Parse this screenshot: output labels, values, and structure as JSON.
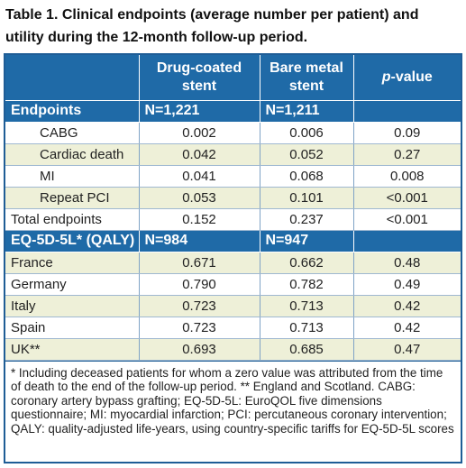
{
  "title_line1": "Table 1. Clinical endpoints (average number per patient) and",
  "title_line2": "utility during the 12-month follow-up period.",
  "header": {
    "col1": "",
    "col2_line1": "Drug-coated",
    "col2_line2": "stent",
    "col3_line1": "Bare metal",
    "col3_line2": "stent",
    "col4_italic": "p",
    "col4_rest": "-value"
  },
  "sections": [
    {
      "label": "Endpoints",
      "n_dcs": "N=1,221",
      "n_bms": "N=1,211",
      "rows": [
        {
          "label": "CABG",
          "dcs": "0.002",
          "bms": "0.006",
          "p": "0.09"
        },
        {
          "label": "Cardiac death",
          "dcs": "0.042",
          "bms": "0.052",
          "p": "0.27"
        },
        {
          "label": "MI",
          "dcs": "0.041",
          "bms": "0.068",
          "p": "0.008"
        },
        {
          "label": "Repeat PCI",
          "dcs": "0.053",
          "bms": "0.101",
          "p": "<0.001"
        },
        {
          "label": "Total endpoints",
          "dcs": "0.152",
          "bms": "0.237",
          "p": "<0.001"
        }
      ]
    },
    {
      "label": "EQ-5D-5L* (QALY)",
      "n_dcs": "N=984",
      "n_bms": "N=947",
      "rows": [
        {
          "label": "France",
          "dcs": "0.671",
          "bms": "0.662",
          "p": "0.48"
        },
        {
          "label": "Germany",
          "dcs": "0.790",
          "bms": "0.782",
          "p": "0.49"
        },
        {
          "label": "Italy",
          "dcs": "0.723",
          "bms": "0.713",
          "p": "0.42"
        },
        {
          "label": "Spain",
          "dcs": "0.723",
          "bms": "0.713",
          "p": "0.42"
        },
        {
          "label": "UK**",
          "dcs": "0.693",
          "bms": "0.685",
          "p": "0.47"
        }
      ]
    }
  ],
  "footnote": "* Including deceased patients for whom a zero value was attributed from the time of death to the end of the follow-up period. ** England and Scotland. CABG: coronary artery bypass grafting; EQ-5D-5L: EuroQOL five dimensions questionnaire; MI: myocardial infarction; PCI: percutaneous coronary intervention; QALY: quality-adjusted life-years, using country-specific tariffs for EQ-5D-5L scores",
  "colors": {
    "header_blue": "#1f6aa7",
    "row_tint": "#eef0d8",
    "border_blue": "#1f5d96"
  }
}
